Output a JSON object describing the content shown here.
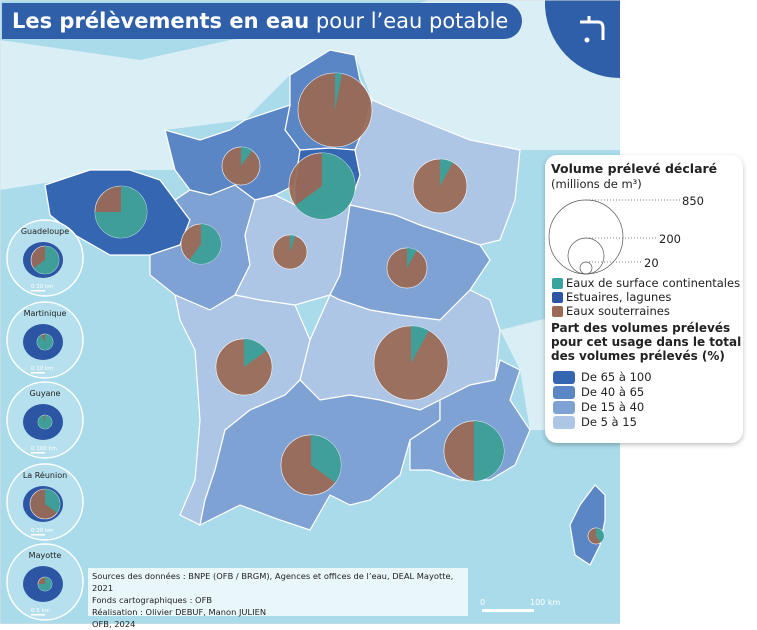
{
  "title": {
    "bold": "Les prélèvements en eau",
    "rest": " pour l’eau potable"
  },
  "corner_icon": "water-tap-icon",
  "colors": {
    "sea": "#a9dbea",
    "land_outside": "#e6f3f8",
    "surface": "#3aa39e",
    "estuaires": "#2c55a3",
    "souterraines": "#9a6a55",
    "class_65_100": "#3466b2",
    "class_40_65": "#5b86c6",
    "class_15_40": "#7fa2d5",
    "class_5_15": "#adc6e6"
  },
  "legend": {
    "volume_title": "Volume prélevé déclaré",
    "volume_unit": "(millions de m³)",
    "volume_refs": [
      "850",
      "200",
      "20"
    ],
    "types": [
      "Eaux de surface continentales",
      "Estuaires, lagunes",
      "Eaux souterraines"
    ],
    "share_title": [
      "Part des volumes prélevés",
      "pour cet usage dans le total",
      "des volumes prélevés (%)"
    ],
    "classes": [
      "De 65 à 100",
      "De 40 à 65",
      "De 15 à 40",
      "De 5 à 15"
    ]
  },
  "regions": [
    {
      "class": 1,
      "volume": 850,
      "surface_share": 0.03
    },
    {
      "class": 1,
      "volume": 225,
      "surface_share": 0.1
    },
    {
      "class": 0,
      "volume": 680,
      "surface_share": 0.65
    },
    {
      "class": 3,
      "volume": 450,
      "surface_share": 0.08
    },
    {
      "class": 0,
      "volume": 420,
      "surface_share": 0.75
    },
    {
      "class": 2,
      "volume": 250,
      "surface_share": 0.6
    },
    {
      "class": 3,
      "volume": 180,
      "surface_share": 0.05
    },
    {
      "class": 2,
      "volume": 250,
      "surface_share": 0.08
    },
    {
      "class": 3,
      "volume": 490,
      "surface_share": 0.15
    },
    {
      "class": 3,
      "volume": 850,
      "surface_share": 0.08
    },
    {
      "class": 2,
      "volume": 560,
      "surface_share": 0.35
    },
    {
      "class": 2,
      "volume": 560,
      "surface_share": 0.5
    },
    {
      "class": 1,
      "volume": 40,
      "surface_share": 0.4
    }
  ],
  "insets": [
    {
      "name": "Guadeloupe",
      "scale": "20 km",
      "surface_share": 0.65
    },
    {
      "name": "Martinique",
      "scale": "10 km",
      "surface_share": 0.92
    },
    {
      "name": "Guyane",
      "scale": "100 km",
      "surface_share": 0.95
    },
    {
      "name": "La Réunion",
      "scale": "20 km",
      "surface_share": 0.35
    },
    {
      "name": "Mayotte",
      "scale": "5 km",
      "surface_share": 0.75
    }
  ],
  "sources": [
    "Sources des données : BNPE (OFB / BRGM), Agences et offices de l’eau, DEAL Mayotte, 2021",
    "Fonds cartographiques : OFB",
    "Réalisation : Olivier DEBUF, Manon JULIEN",
    "OFB, 2024"
  ],
  "scale_bar": {
    "start": "0",
    "end": "100 km"
  }
}
